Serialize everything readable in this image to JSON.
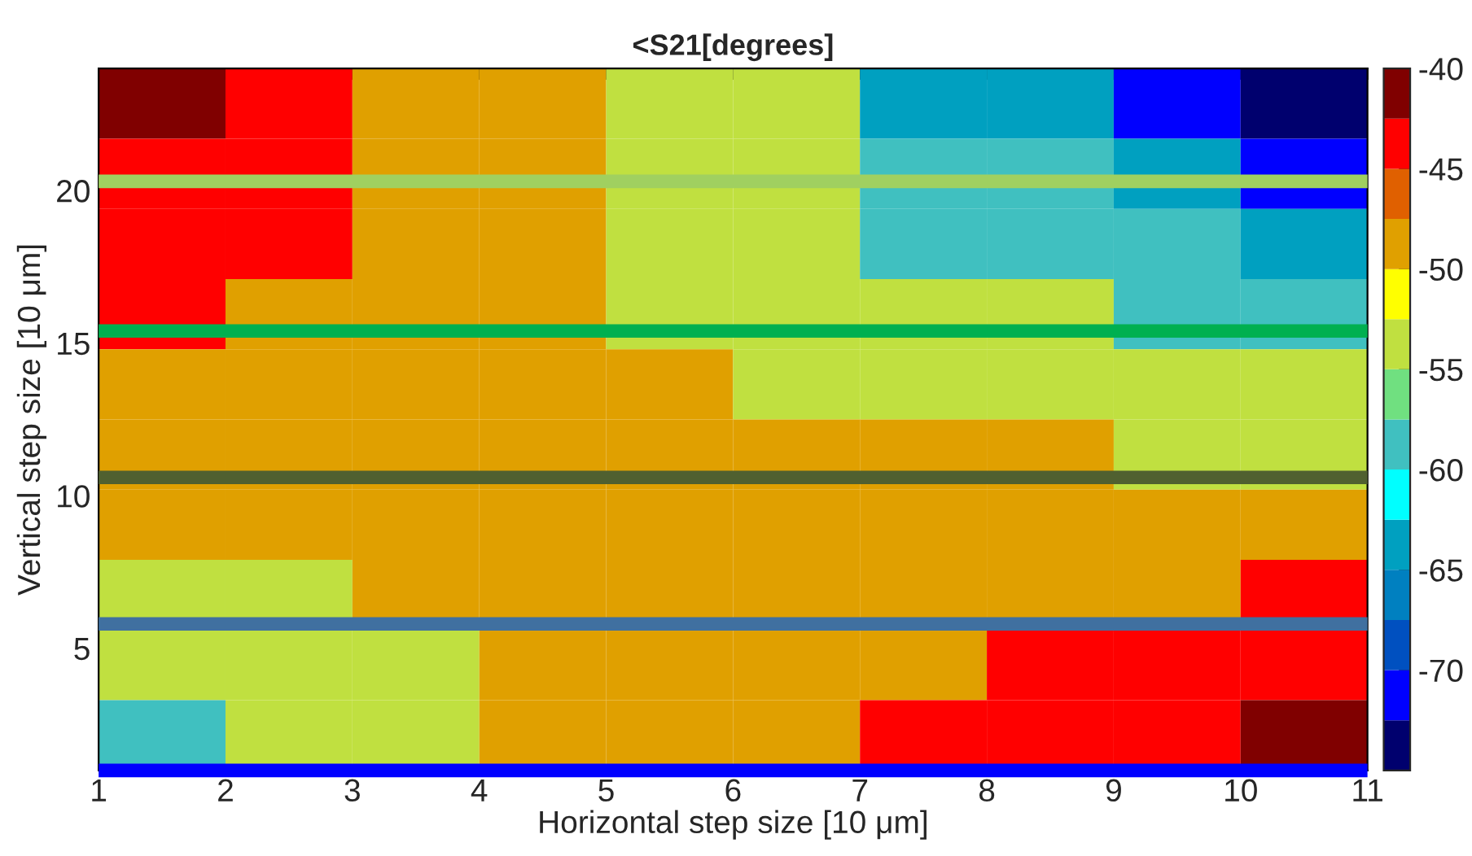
{
  "chart_data": {
    "type": "heatmap",
    "title": "<S21[degrees]",
    "xlabel": "Horizontal step size [10 μm]",
    "ylabel": "Vertical step size [10 μm]",
    "x": [
      1.5,
      2.5,
      3.5,
      4.5,
      5.5,
      6.5,
      7.5,
      8.5,
      9.5,
      10.5
    ],
    "y": [
      22.85,
      20.55,
      18.25,
      15.95,
      13.65,
      11.35,
      9.05,
      6.75,
      4.45,
      2.15
    ],
    "cells": [
      [
        -41,
        -44,
        -49,
        -49,
        -54,
        -54,
        -64,
        -64,
        -71,
        -74
      ],
      [
        -44,
        -44,
        -49,
        -49,
        -54,
        -54,
        -59,
        -59,
        -64,
        -71
      ],
      [
        -44,
        -44,
        -49,
        -49,
        -54,
        -54,
        -59,
        -59,
        -59,
        -64
      ],
      [
        -44,
        -49,
        -49,
        -49,
        -54,
        -54,
        -54,
        -54,
        -59,
        -59
      ],
      [
        -49,
        -49,
        -49,
        -49,
        -49,
        -54,
        -54,
        -54,
        -54,
        -54
      ],
      [
        -49,
        -49,
        -49,
        -49,
        -49,
        -49,
        -49,
        -49,
        -54,
        -54
      ],
      [
        -49,
        -49,
        -49,
        -49,
        -49,
        -49,
        -49,
        -49,
        -49,
        -49
      ],
      [
        -54,
        -54,
        -49,
        -49,
        -49,
        -49,
        -49,
        -49,
        -49,
        -44
      ],
      [
        -54,
        -54,
        -54,
        -49,
        -49,
        -49,
        -49,
        -44,
        -44,
        -44
      ],
      [
        -59,
        -54,
        -54,
        -49,
        -49,
        -49,
        -44,
        -44,
        -44,
        -41
      ]
    ],
    "colors": [
      "#00006e",
      "#0000ff",
      "#0050c0",
      "#0080c0",
      "#00a0c0",
      "#00ffff",
      "#40c0c0",
      "#70e080",
      "#c0e040",
      "#ffff00",
      "#e0a000",
      "#e06000",
      "#ff0000",
      "#800000"
    ],
    "clim": [
      -75,
      -40
    ],
    "cticks": [
      -70,
      -65,
      -60,
      -55,
      -50,
      -45,
      -40
    ],
    "xlim": [
      1,
      11
    ],
    "ylim": [
      1,
      24
    ],
    "xticks": [
      1,
      2,
      3,
      4,
      5,
      6,
      7,
      8,
      9,
      10,
      11
    ],
    "yticks": [
      5,
      10,
      15,
      20
    ],
    "ref_lines": [
      {
        "axis": "y",
        "value": 20.3,
        "color": "#a0d060"
      },
      {
        "axis": "y",
        "value": 15.4,
        "color": "#00b050"
      },
      {
        "axis": "y",
        "value": 10.6,
        "color": "#506030"
      },
      {
        "axis": "y",
        "value": 5.8,
        "color": "#4070a0"
      },
      {
        "axis": "y",
        "value": 1.0,
        "color": "#0000ff"
      }
    ]
  }
}
